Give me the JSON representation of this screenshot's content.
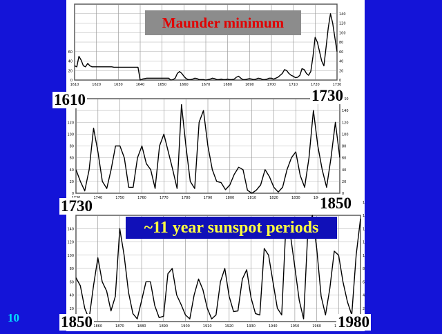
{
  "slide_number": "10",
  "banners": {
    "maunder": "Maunder minimum",
    "periods": "~11 year sunspot periods"
  },
  "year_labels": {
    "p1_start": "1610",
    "p1_end": "1730",
    "p2_start": "1730",
    "p2_end": "1850",
    "p3_start": "1850",
    "p3_end": "1980"
  },
  "colors": {
    "background": "#1414d8",
    "maunder_banner_bg": "#8c8c8c",
    "maunder_text": "#e00000",
    "periods_banner_bg": "#1010b8",
    "periods_text": "#ffff40"
  },
  "chart_data": [
    {
      "type": "line",
      "title": "",
      "xlim": [
        1610,
        1730
      ],
      "ylim": [
        0,
        160
      ],
      "grid": true,
      "x_ticks": [
        "1610",
        "1620",
        "1630",
        "1640",
        "1650",
        "1660",
        "1670",
        "1680",
        "1690",
        "1700",
        "1710",
        "1720",
        "1730"
      ],
      "y_ticks_left": [
        "0",
        "20",
        "40",
        "60"
      ],
      "y_ticks_right": [
        "0",
        "20",
        "40",
        "60",
        "80",
        "100",
        "120",
        "140"
      ],
      "series": [
        {
          "x": [
            1610,
            1611,
            1612,
            1613,
            1614,
            1615,
            1616,
            1617,
            1618,
            1619,
            1620,
            1621,
            1622,
            1623,
            1624,
            1625,
            1626,
            1627,
            1628,
            1629,
            1630,
            1631,
            1632,
            1633,
            1634,
            1635,
            1636,
            1637,
            1638,
            1639,
            1640,
            1641,
            1642,
            1643,
            1644,
            1645,
            1646,
            1647,
            1648,
            1649,
            1650,
            1651,
            1652,
            1653,
            1654,
            1655,
            1656,
            1657,
            1658,
            1659,
            1660,
            1661,
            1662,
            1663,
            1664,
            1665,
            1666,
            1667,
            1668,
            1669,
            1670,
            1671,
            1672,
            1673,
            1674,
            1675,
            1676,
            1677,
            1678,
            1679,
            1680,
            1681,
            1682,
            1683,
            1684,
            1685,
            1686,
            1687,
            1688,
            1689,
            1690,
            1691,
            1692,
            1693,
            1694,
            1695,
            1696,
            1697,
            1698,
            1699,
            1700,
            1701,
            1702,
            1703,
            1704,
            1705,
            1706,
            1707,
            1708,
            1709,
            1710,
            1711,
            1712,
            1713,
            1714,
            1715,
            1716,
            1717,
            1718,
            1719,
            1720,
            1721,
            1722,
            1723,
            1724,
            1725,
            1726,
            1727,
            1728,
            1729,
            1730
          ],
          "y": [
            30,
            28,
            50,
            42,
            30,
            28,
            35,
            30,
            28,
            28,
            28,
            28,
            28,
            28,
            28,
            28,
            28,
            28,
            27,
            27,
            27,
            27,
            27,
            27,
            27,
            27,
            27,
            27,
            27,
            27,
            0,
            2,
            3,
            4,
            4,
            4,
            4,
            4,
            4,
            4,
            4,
            4,
            4,
            4,
            0,
            1,
            4,
            14,
            18,
            14,
            8,
            3,
            1,
            1,
            2,
            4,
            3,
            1,
            1,
            1,
            0,
            1,
            2,
            4,
            3,
            1,
            1,
            2,
            1,
            1,
            2,
            1,
            1,
            2,
            6,
            8,
            4,
            1,
            1,
            2,
            3,
            2,
            1,
            2,
            4,
            3,
            1,
            1,
            2,
            4,
            4,
            2,
            4,
            6,
            10,
            14,
            22,
            20,
            14,
            10,
            8,
            5,
            6,
            10,
            24,
            22,
            14,
            10,
            18,
            50,
            90,
            80,
            60,
            40,
            30,
            70,
            110,
            140,
            120,
            90,
            60
          ]
        }
      ]
    },
    {
      "type": "line",
      "title": "",
      "xlim": [
        1730,
        1850
      ],
      "ylim": [
        0,
        160
      ],
      "grid": true,
      "x_ticks": [
        "1730",
        "1740",
        "1750",
        "1760",
        "1770",
        "1780",
        "1790",
        "1800",
        "1810",
        "1820",
        "1830",
        "1840",
        "1850"
      ],
      "y_ticks_left": [
        "0",
        "20",
        "40",
        "60",
        "80",
        "100",
        "120"
      ],
      "y_ticks_right": [
        "0",
        "20",
        "40",
        "60",
        "80",
        "100",
        "120",
        "140",
        "160"
      ],
      "series": [
        {
          "x": [
            1730,
            1732,
            1734,
            1736,
            1738,
            1740,
            1742,
            1744,
            1746,
            1748,
            1750,
            1752,
            1754,
            1756,
            1758,
            1760,
            1762,
            1764,
            1766,
            1768,
            1770,
            1772,
            1774,
            1776,
            1778,
            1780,
            1782,
            1784,
            1786,
            1788,
            1790,
            1792,
            1794,
            1796,
            1798,
            1800,
            1802,
            1804,
            1806,
            1808,
            1810,
            1812,
            1814,
            1816,
            1818,
            1820,
            1822,
            1824,
            1826,
            1828,
            1830,
            1832,
            1834,
            1836,
            1838,
            1840,
            1842,
            1844,
            1846,
            1848,
            1850
          ],
          "y": [
            40,
            20,
            4,
            40,
            110,
            70,
            20,
            8,
            40,
            80,
            80,
            60,
            10,
            10,
            60,
            80,
            50,
            40,
            8,
            80,
            100,
            70,
            40,
            8,
            150,
            80,
            20,
            8,
            120,
            140,
            80,
            40,
            20,
            18,
            6,
            14,
            32,
            44,
            40,
            5,
            0,
            5,
            14,
            40,
            28,
            10,
            2,
            10,
            40,
            60,
            70,
            30,
            10,
            60,
            140,
            80,
            40,
            10,
            60,
            120,
            60
          ]
        }
      ]
    },
    {
      "type": "line",
      "title": "",
      "xlim": [
        1850,
        1980
      ],
      "ylim": [
        0,
        160
      ],
      "grid": true,
      "x_ticks": [
        "1850",
        "1860",
        "1870",
        "1880",
        "1890",
        "1900",
        "1910",
        "1920",
        "1930",
        "1940",
        "1950",
        "1960",
        "1970",
        "1980"
      ],
      "y_ticks_left": [
        "0",
        "20",
        "40",
        "60",
        "80",
        "100",
        "120",
        "140"
      ],
      "y_ticks_right": [
        "0",
        "20",
        "40",
        "60",
        "80",
        "100",
        "120",
        "140",
        "160",
        "180"
      ],
      "series": [
        {
          "x": [
            1850,
            1852,
            1854,
            1856,
            1858,
            1860,
            1862,
            1864,
            1866,
            1868,
            1870,
            1872,
            1874,
            1876,
            1878,
            1880,
            1882,
            1884,
            1886,
            1888,
            1890,
            1892,
            1894,
            1896,
            1898,
            1900,
            1902,
            1904,
            1906,
            1908,
            1910,
            1912,
            1914,
            1916,
            1918,
            1920,
            1922,
            1924,
            1926,
            1928,
            1930,
            1932,
            1934,
            1936,
            1938,
            1940,
            1942,
            1944,
            1946,
            1948,
            1950,
            1952,
            1954,
            1956,
            1958,
            1960,
            1962,
            1964,
            1966,
            1968,
            1970,
            1972,
            1974,
            1976,
            1978,
            1980
          ],
          "y": [
            66,
            54,
            20,
            4,
            54,
            96,
            60,
            46,
            16,
            38,
            140,
            100,
            44,
            12,
            4,
            32,
            60,
            60,
            24,
            6,
            8,
            72,
            80,
            40,
            26,
            10,
            4,
            40,
            64,
            48,
            20,
            4,
            10,
            60,
            80,
            38,
            15,
            16,
            64,
            78,
            36,
            12,
            10,
            110,
            100,
            60,
            20,
            10,
            150,
            130,
            82,
            32,
            4,
            140,
            184,
            110,
            38,
            10,
            50,
            106,
            100,
            60,
            30,
            10,
            100,
            155
          ]
        }
      ]
    }
  ]
}
